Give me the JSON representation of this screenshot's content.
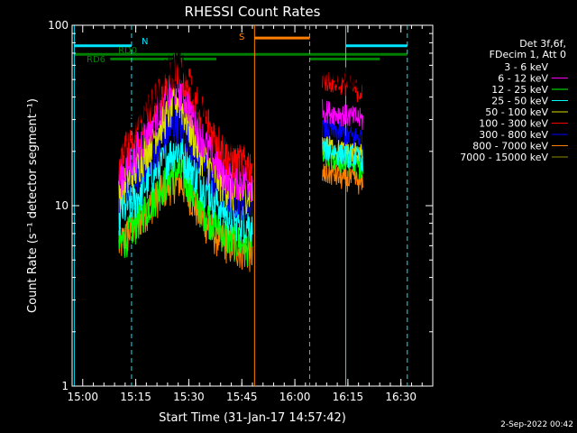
{
  "chart_data": {
    "type": "line",
    "title": "RHESSI Count Rates",
    "xlabel": "Start Time (31-Jan-17 14:57:42)",
    "ylabel": "Count Rate (s⁻¹ detector segment⁻¹)",
    "yscale": "log",
    "ylim": [
      1,
      100
    ],
    "xlim_minutes": [
      14.95,
      16.65
    ],
    "x_ticks": [
      {
        "label": "15:00",
        "value": 15.0
      },
      {
        "label": "15:15",
        "value": 15.25
      },
      {
        "label": "15:30",
        "value": 15.5
      },
      {
        "label": "15:45",
        "value": 15.75
      },
      {
        "label": "16:00",
        "value": 16.0
      },
      {
        "label": "16:15",
        "value": 16.25
      },
      {
        "label": "16:30",
        "value": 16.5
      }
    ],
    "y_ticks": [
      {
        "label": "1",
        "value": 1
      },
      {
        "label": "10",
        "value": 10
      },
      {
        "label": "100",
        "value": 100
      }
    ],
    "legend": {
      "placement": "right",
      "header": [
        "Det 3f,6f,",
        "FDecim 1, Att 0"
      ],
      "entries": [
        {
          "label": "3 - 6 keV",
          "color": "#000000"
        },
        {
          "label": "6 - 12 keV",
          "color": "#ff00ff"
        },
        {
          "label": "12 - 25 keV",
          "color": "#00ff00"
        },
        {
          "label": "25 - 50 keV",
          "color": "#00ffff"
        },
        {
          "label": "50 - 100 keV",
          "color": "#dddd00"
        },
        {
          "label": "100 - 300 keV",
          "color": "#ff0000"
        },
        {
          "label": "300 - 800 keV",
          "color": "#0000ff"
        },
        {
          "label": "800 - 7000 keV",
          "color": "#ff8000"
        },
        {
          "label": "7000 - 15000 keV",
          "color": "#8b8b00"
        }
      ]
    },
    "series": [
      {
        "color": "#000000",
        "time": [
          15.17,
          15.25,
          15.33,
          15.4,
          15.45,
          15.5,
          15.55,
          15.62,
          15.7,
          15.8
        ],
        "values": [
          24,
          29,
          40,
          55,
          60,
          52,
          42,
          32,
          26,
          25
        ]
      },
      {
        "color": "#ff0000",
        "time": [
          15.17,
          15.25,
          15.33,
          15.4,
          15.45,
          15.5,
          15.55,
          15.62,
          15.7,
          15.8
        ],
        "values": [
          18,
          25,
          38,
          52,
          57,
          48,
          36,
          25,
          18,
          17
        ]
      },
      {
        "color": "#ff00ff",
        "time": [
          15.17,
          15.25,
          15.33,
          15.4,
          15.45,
          15.5,
          15.55,
          15.62,
          15.7,
          15.8
        ],
        "values": [
          14,
          20,
          30,
          42,
          46,
          36,
          26,
          18,
          14,
          14
        ]
      },
      {
        "color": "#dddd00",
        "time": [
          15.17,
          15.25,
          15.33,
          15.4,
          15.45,
          15.5,
          15.55,
          15.62,
          15.7,
          15.8
        ],
        "values": [
          12,
          16,
          24,
          32,
          40,
          28,
          20,
          15,
          12,
          12
        ]
      },
      {
        "color": "#0000ff",
        "time": [
          15.17,
          15.25,
          15.33,
          15.4,
          15.45,
          15.5,
          15.55,
          15.62,
          15.7,
          15.8
        ],
        "values": [
          12,
          15,
          20,
          26,
          29,
          24,
          19,
          14,
          11,
          11
        ]
      },
      {
        "color": "#00ffff",
        "time": [
          15.17,
          15.25,
          15.33,
          15.4,
          15.45,
          15.5,
          15.55,
          15.62,
          15.7,
          15.8
        ],
        "values": [
          9,
          11,
          15,
          19,
          21,
          17,
          14,
          11,
          8.5,
          8
        ]
      },
      {
        "color": "#00ff00",
        "time": [
          15.17,
          15.25,
          15.33,
          15.4,
          15.45,
          15.5,
          15.55,
          15.62,
          15.7,
          15.8
        ],
        "values": [
          6,
          8,
          11,
          14,
          16,
          13,
          10,
          8,
          6.5,
          6
        ]
      },
      {
        "color": "#ff8000",
        "time": [
          15.17,
          15.25,
          15.33,
          15.4,
          15.45,
          15.5,
          15.55,
          15.62,
          15.7,
          15.8
        ],
        "values": [
          6,
          8,
          10.5,
          13,
          14,
          12,
          9,
          7,
          6,
          5.5
        ]
      }
    ],
    "late_segment": {
      "time": [
        16.13,
        16.18,
        16.23,
        16.28,
        16.32
      ],
      "series": [
        {
          "color": "#000000",
          "values": [
            55,
            54,
            53,
            50,
            46
          ]
        },
        {
          "color": "#ff0000",
          "values": [
            50,
            49,
            48,
            45,
            42
          ]
        },
        {
          "color": "#ff00ff",
          "values": [
            34,
            33,
            32,
            31,
            30
          ]
        },
        {
          "color": "#0000ff",
          "values": [
            27,
            26,
            25,
            24,
            24
          ]
        },
        {
          "color": "#00ffff",
          "values": [
            21,
            20,
            19,
            19,
            18
          ]
        },
        {
          "color": "#00ff00",
          "values": [
            19,
            18,
            17,
            17,
            16
          ]
        },
        {
          "color": "#dddd00",
          "values": [
            22,
            21,
            20,
            20,
            19
          ]
        },
        {
          "color": "#ff8000",
          "values": [
            15,
            15,
            14,
            14,
            13
          ]
        }
      ]
    },
    "vertical_lines": [
      {
        "time": 14.96,
        "color": "#00e5ff",
        "style": "solid"
      },
      {
        "time": 15.23,
        "color": "#00e5ff",
        "style": "dashed"
      },
      {
        "time": 15.81,
        "color": "#ff8000",
        "style": "solid"
      },
      {
        "time": 16.07,
        "color": "#ff8000",
        "style": "dashed"
      },
      {
        "time": 16.24,
        "color": "#00e5ff",
        "style": "solid"
      },
      {
        "time": 16.53,
        "color": "#00e5ff",
        "style": "dashed"
      }
    ],
    "status_bars": [
      {
        "label": "N",
        "color": "#00e5ff",
        "level": 77,
        "segments": [
          [
            14.96,
            15.23
          ],
          [
            16.24,
            16.53
          ]
        ]
      },
      {
        "label": "RD0",
        "color": "#008000",
        "level": 69,
        "segments": [
          [
            14.96,
            15.63
          ],
          [
            15.63,
            16.07
          ],
          [
            16.07,
            16.4
          ],
          [
            16.4,
            16.53
          ]
        ]
      },
      {
        "label": "RD6",
        "color": "#008000",
        "level": 65,
        "segments": [
          [
            15.13,
            15.63
          ],
          [
            16.07,
            16.4
          ]
        ]
      },
      {
        "label": "S",
        "color": "#ff8000",
        "level": 85,
        "segments": [
          [
            15.81,
            16.07
          ]
        ]
      }
    ],
    "footer": "2-Sep-2022 00:42"
  }
}
